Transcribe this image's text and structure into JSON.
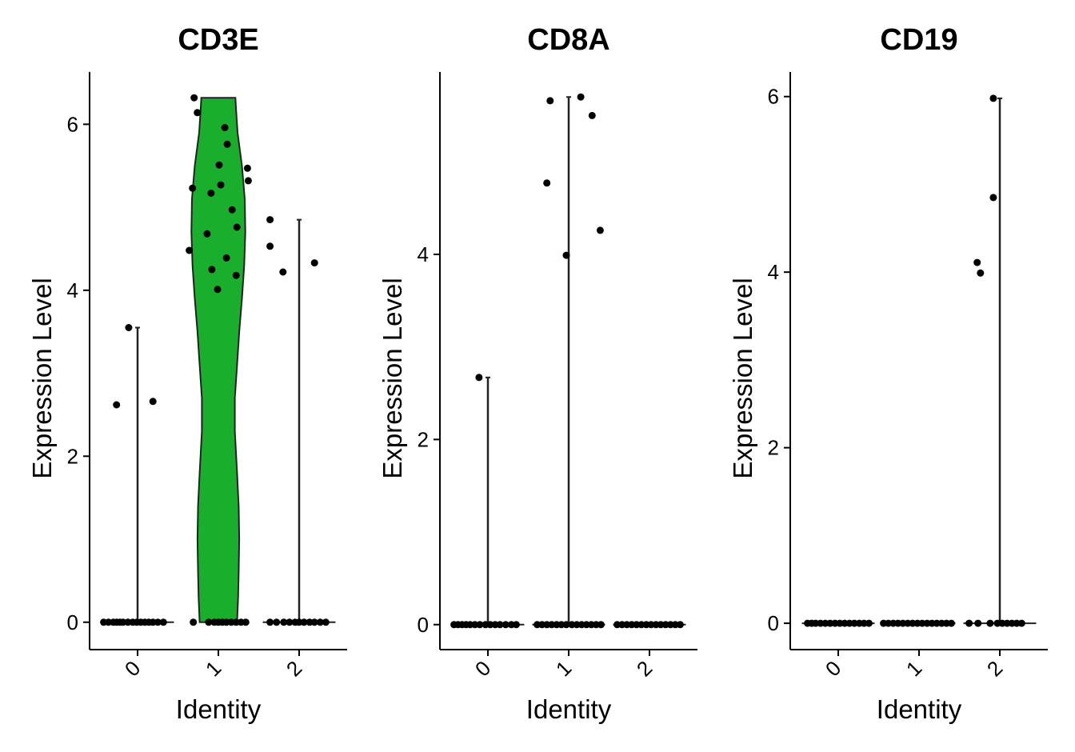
{
  "chart_data": [
    {
      "type": "violin",
      "title": "CD3E",
      "xlabel": "Identity",
      "ylabel": "Expression Level",
      "categories": [
        "0",
        "1",
        "2"
      ],
      "yticks": [
        0,
        2,
        4,
        6
      ],
      "ylim": [
        -0.33,
        6.63
      ],
      "violin_color": "#19AF2C",
      "groups": [
        {
          "category": "0",
          "violin": false,
          "max": 3.55,
          "points": [
            {
              "dx": -0.42,
              "y": 0
            },
            {
              "dx": -0.36,
              "y": 0
            },
            {
              "dx": -0.3,
              "y": 0
            },
            {
              "dx": -0.26,
              "y": 0
            },
            {
              "dx": -0.22,
              "y": 0
            },
            {
              "dx": -0.18,
              "y": 0
            },
            {
              "dx": -0.12,
              "y": 0
            },
            {
              "dx": -0.06,
              "y": 0
            },
            {
              "dx": -0.01,
              "y": 0
            },
            {
              "dx": 0.04,
              "y": 0
            },
            {
              "dx": 0.09,
              "y": 0
            },
            {
              "dx": 0.14,
              "y": 0
            },
            {
              "dx": 0.19,
              "y": 0
            },
            {
              "dx": 0.25,
              "y": 0
            },
            {
              "dx": 0.32,
              "y": 0
            },
            {
              "dx": -0.11,
              "y": 3.55
            },
            {
              "dx": -0.26,
              "y": 2.62
            },
            {
              "dx": 0.19,
              "y": 2.66
            }
          ]
        },
        {
          "category": "1",
          "violin": true,
          "violin_profile": [
            [
              0,
              0.68
            ],
            [
              0.3,
              0.72
            ],
            [
              0.6,
              0.74
            ],
            [
              1.0,
              0.76
            ],
            [
              1.4,
              0.74
            ],
            [
              1.8,
              0.68
            ],
            [
              2.3,
              0.6
            ],
            [
              2.7,
              0.6
            ],
            [
              3.1,
              0.68
            ],
            [
              3.5,
              0.76
            ],
            [
              3.9,
              0.86
            ],
            [
              4.3,
              0.94
            ],
            [
              4.7,
              0.98
            ],
            [
              5.1,
              0.96
            ],
            [
              5.5,
              0.86
            ],
            [
              5.9,
              0.7
            ],
            [
              6.2,
              0.64
            ],
            [
              6.32,
              0.62
            ]
          ],
          "max": 6.32,
          "points": [
            {
              "dx": -0.31,
              "y": 0
            },
            {
              "dx": -0.12,
              "y": 0
            },
            {
              "dx": -0.05,
              "y": 0
            },
            {
              "dx": 0.0,
              "y": 0
            },
            {
              "dx": 0.05,
              "y": 0
            },
            {
              "dx": 0.1,
              "y": 0
            },
            {
              "dx": 0.16,
              "y": 0
            },
            {
              "dx": 0.22,
              "y": 0
            },
            {
              "dx": 0.28,
              "y": 0
            },
            {
              "dx": 0.34,
              "y": 0
            },
            {
              "dx": -0.3,
              "y": 6.32
            },
            {
              "dx": -0.26,
              "y": 6.14
            },
            {
              "dx": 0.08,
              "y": 5.96
            },
            {
              "dx": 0.11,
              "y": 5.76
            },
            {
              "dx": 0.01,
              "y": 5.51
            },
            {
              "dx": 0.36,
              "y": 5.47
            },
            {
              "dx": 0.37,
              "y": 5.32
            },
            {
              "dx": 0.03,
              "y": 5.27
            },
            {
              "dx": -0.32,
              "y": 5.23
            },
            {
              "dx": -0.09,
              "y": 5.17
            },
            {
              "dx": 0.17,
              "y": 4.97
            },
            {
              "dx": 0.23,
              "y": 4.76
            },
            {
              "dx": -0.14,
              "y": 4.68
            },
            {
              "dx": -0.36,
              "y": 4.48
            },
            {
              "dx": 0.1,
              "y": 4.39
            },
            {
              "dx": -0.08,
              "y": 4.25
            },
            {
              "dx": 0.22,
              "y": 4.18
            },
            {
              "dx": -0.01,
              "y": 4.01
            }
          ]
        },
        {
          "category": "2",
          "violin": false,
          "max": 4.85,
          "points": [
            {
              "dx": -0.36,
              "y": 0
            },
            {
              "dx": -0.28,
              "y": 0
            },
            {
              "dx": -0.19,
              "y": 0
            },
            {
              "dx": -0.12,
              "y": 0
            },
            {
              "dx": -0.05,
              "y": 0
            },
            {
              "dx": 0.0,
              "y": 0
            },
            {
              "dx": 0.06,
              "y": 0
            },
            {
              "dx": 0.13,
              "y": 0
            },
            {
              "dx": 0.19,
              "y": 0
            },
            {
              "dx": 0.26,
              "y": 0
            },
            {
              "dx": 0.33,
              "y": 0
            },
            {
              "dx": -0.36,
              "y": 4.85
            },
            {
              "dx": -0.36,
              "y": 4.53
            },
            {
              "dx": -0.2,
              "y": 4.22
            },
            {
              "dx": 0.19,
              "y": 4.33
            }
          ]
        }
      ]
    },
    {
      "type": "violin",
      "title": "CD8A",
      "xlabel": "Identity",
      "ylabel": "Expression Level",
      "categories": [
        "0",
        "1",
        "2"
      ],
      "yticks": [
        0,
        2,
        4
      ],
      "ylim": [
        -0.27,
        5.97
      ],
      "violin_color": "#19AF2C",
      "groups": [
        {
          "category": "0",
          "violin": false,
          "max": 2.67,
          "points": [
            {
              "dx": -0.42,
              "y": 0
            },
            {
              "dx": -0.37,
              "y": 0
            },
            {
              "dx": -0.32,
              "y": 0
            },
            {
              "dx": -0.27,
              "y": 0
            },
            {
              "dx": -0.22,
              "y": 0
            },
            {
              "dx": -0.16,
              "y": 0
            },
            {
              "dx": -0.1,
              "y": 0
            },
            {
              "dx": -0.03,
              "y": 0
            },
            {
              "dx": 0.03,
              "y": 0
            },
            {
              "dx": 0.09,
              "y": 0
            },
            {
              "dx": 0.15,
              "y": 0
            },
            {
              "dx": 0.22,
              "y": 0
            },
            {
              "dx": 0.29,
              "y": 0
            },
            {
              "dx": 0.35,
              "y": 0
            },
            {
              "dx": -0.11,
              "y": 2.67
            }
          ]
        },
        {
          "category": "1",
          "violin": false,
          "max": 5.7,
          "points": [
            {
              "dx": -0.39,
              "y": 0
            },
            {
              "dx": -0.33,
              "y": 0
            },
            {
              "dx": -0.27,
              "y": 0
            },
            {
              "dx": -0.21,
              "y": 0
            },
            {
              "dx": -0.15,
              "y": 0
            },
            {
              "dx": -0.09,
              "y": 0
            },
            {
              "dx": -0.03,
              "y": 0
            },
            {
              "dx": 0.04,
              "y": 0
            },
            {
              "dx": 0.1,
              "y": 0
            },
            {
              "dx": 0.16,
              "y": 0
            },
            {
              "dx": 0.22,
              "y": 0
            },
            {
              "dx": 0.28,
              "y": 0
            },
            {
              "dx": 0.34,
              "y": 0
            },
            {
              "dx": 0.4,
              "y": 0
            },
            {
              "dx": 0.15,
              "y": 5.7
            },
            {
              "dx": -0.23,
              "y": 5.66
            },
            {
              "dx": 0.29,
              "y": 5.5
            },
            {
              "dx": -0.27,
              "y": 4.77
            },
            {
              "dx": 0.39,
              "y": 4.26
            },
            {
              "dx": -0.03,
              "y": 3.99
            }
          ]
        },
        {
          "category": "2",
          "violin": false,
          "max": 0,
          "points": [
            {
              "dx": -0.4,
              "y": 0
            },
            {
              "dx": -0.34,
              "y": 0
            },
            {
              "dx": -0.28,
              "y": 0
            },
            {
              "dx": -0.22,
              "y": 0
            },
            {
              "dx": -0.16,
              "y": 0
            },
            {
              "dx": -0.1,
              "y": 0
            },
            {
              "dx": -0.04,
              "y": 0
            },
            {
              "dx": 0.02,
              "y": 0
            },
            {
              "dx": 0.08,
              "y": 0
            },
            {
              "dx": 0.14,
              "y": 0
            },
            {
              "dx": 0.2,
              "y": 0
            },
            {
              "dx": 0.26,
              "y": 0
            },
            {
              "dx": 0.32,
              "y": 0
            },
            {
              "dx": 0.38,
              "y": 0
            }
          ]
        }
      ]
    },
    {
      "type": "violin",
      "title": "CD19",
      "xlabel": "Identity",
      "ylabel": "Expression Level",
      "categories": [
        "0",
        "1",
        "2"
      ],
      "yticks": [
        0,
        2,
        4,
        6
      ],
      "ylim": [
        -0.3,
        6.28
      ],
      "violin_color": "#19AF2C",
      "groups": [
        {
          "category": "0",
          "violin": false,
          "max": 0,
          "points": [
            {
              "dx": -0.38,
              "y": 0
            },
            {
              "dx": -0.33,
              "y": 0
            },
            {
              "dx": -0.28,
              "y": 0
            },
            {
              "dx": -0.22,
              "y": 0
            },
            {
              "dx": -0.16,
              "y": 0
            },
            {
              "dx": -0.1,
              "y": 0
            },
            {
              "dx": -0.04,
              "y": 0
            },
            {
              "dx": 0.02,
              "y": 0
            },
            {
              "dx": 0.08,
              "y": 0
            },
            {
              "dx": 0.14,
              "y": 0
            },
            {
              "dx": 0.2,
              "y": 0
            },
            {
              "dx": 0.26,
              "y": 0
            },
            {
              "dx": 0.32,
              "y": 0
            },
            {
              "dx": 0.38,
              "y": 0
            }
          ]
        },
        {
          "category": "1",
          "violin": false,
          "max": 0,
          "points": [
            {
              "dx": -0.44,
              "y": 0
            },
            {
              "dx": -0.38,
              "y": 0
            },
            {
              "dx": -0.32,
              "y": 0
            },
            {
              "dx": -0.26,
              "y": 0
            },
            {
              "dx": -0.2,
              "y": 0
            },
            {
              "dx": -0.14,
              "y": 0
            },
            {
              "dx": -0.08,
              "y": 0
            },
            {
              "dx": -0.02,
              "y": 0
            },
            {
              "dx": 0.04,
              "y": 0
            },
            {
              "dx": 0.1,
              "y": 0
            },
            {
              "dx": 0.16,
              "y": 0
            },
            {
              "dx": 0.22,
              "y": 0
            },
            {
              "dx": 0.28,
              "y": 0
            },
            {
              "dx": 0.34,
              "y": 0
            },
            {
              "dx": 0.4,
              "y": 0
            }
          ]
        },
        {
          "category": "2",
          "violin": false,
          "max": 5.98,
          "points": [
            {
              "dx": -0.38,
              "y": 0
            },
            {
              "dx": -0.27,
              "y": 0
            },
            {
              "dx": -0.12,
              "y": 0
            },
            {
              "dx": -0.03,
              "y": 0
            },
            {
              "dx": 0.03,
              "y": 0
            },
            {
              "dx": 0.09,
              "y": 0
            },
            {
              "dx": 0.15,
              "y": 0
            },
            {
              "dx": 0.21,
              "y": 0
            },
            {
              "dx": 0.27,
              "y": 0
            },
            {
              "dx": -0.08,
              "y": 5.98
            },
            {
              "dx": -0.08,
              "y": 4.85
            },
            {
              "dx": -0.28,
              "y": 4.11
            },
            {
              "dx": -0.24,
              "y": 3.99
            }
          ]
        }
      ]
    }
  ]
}
